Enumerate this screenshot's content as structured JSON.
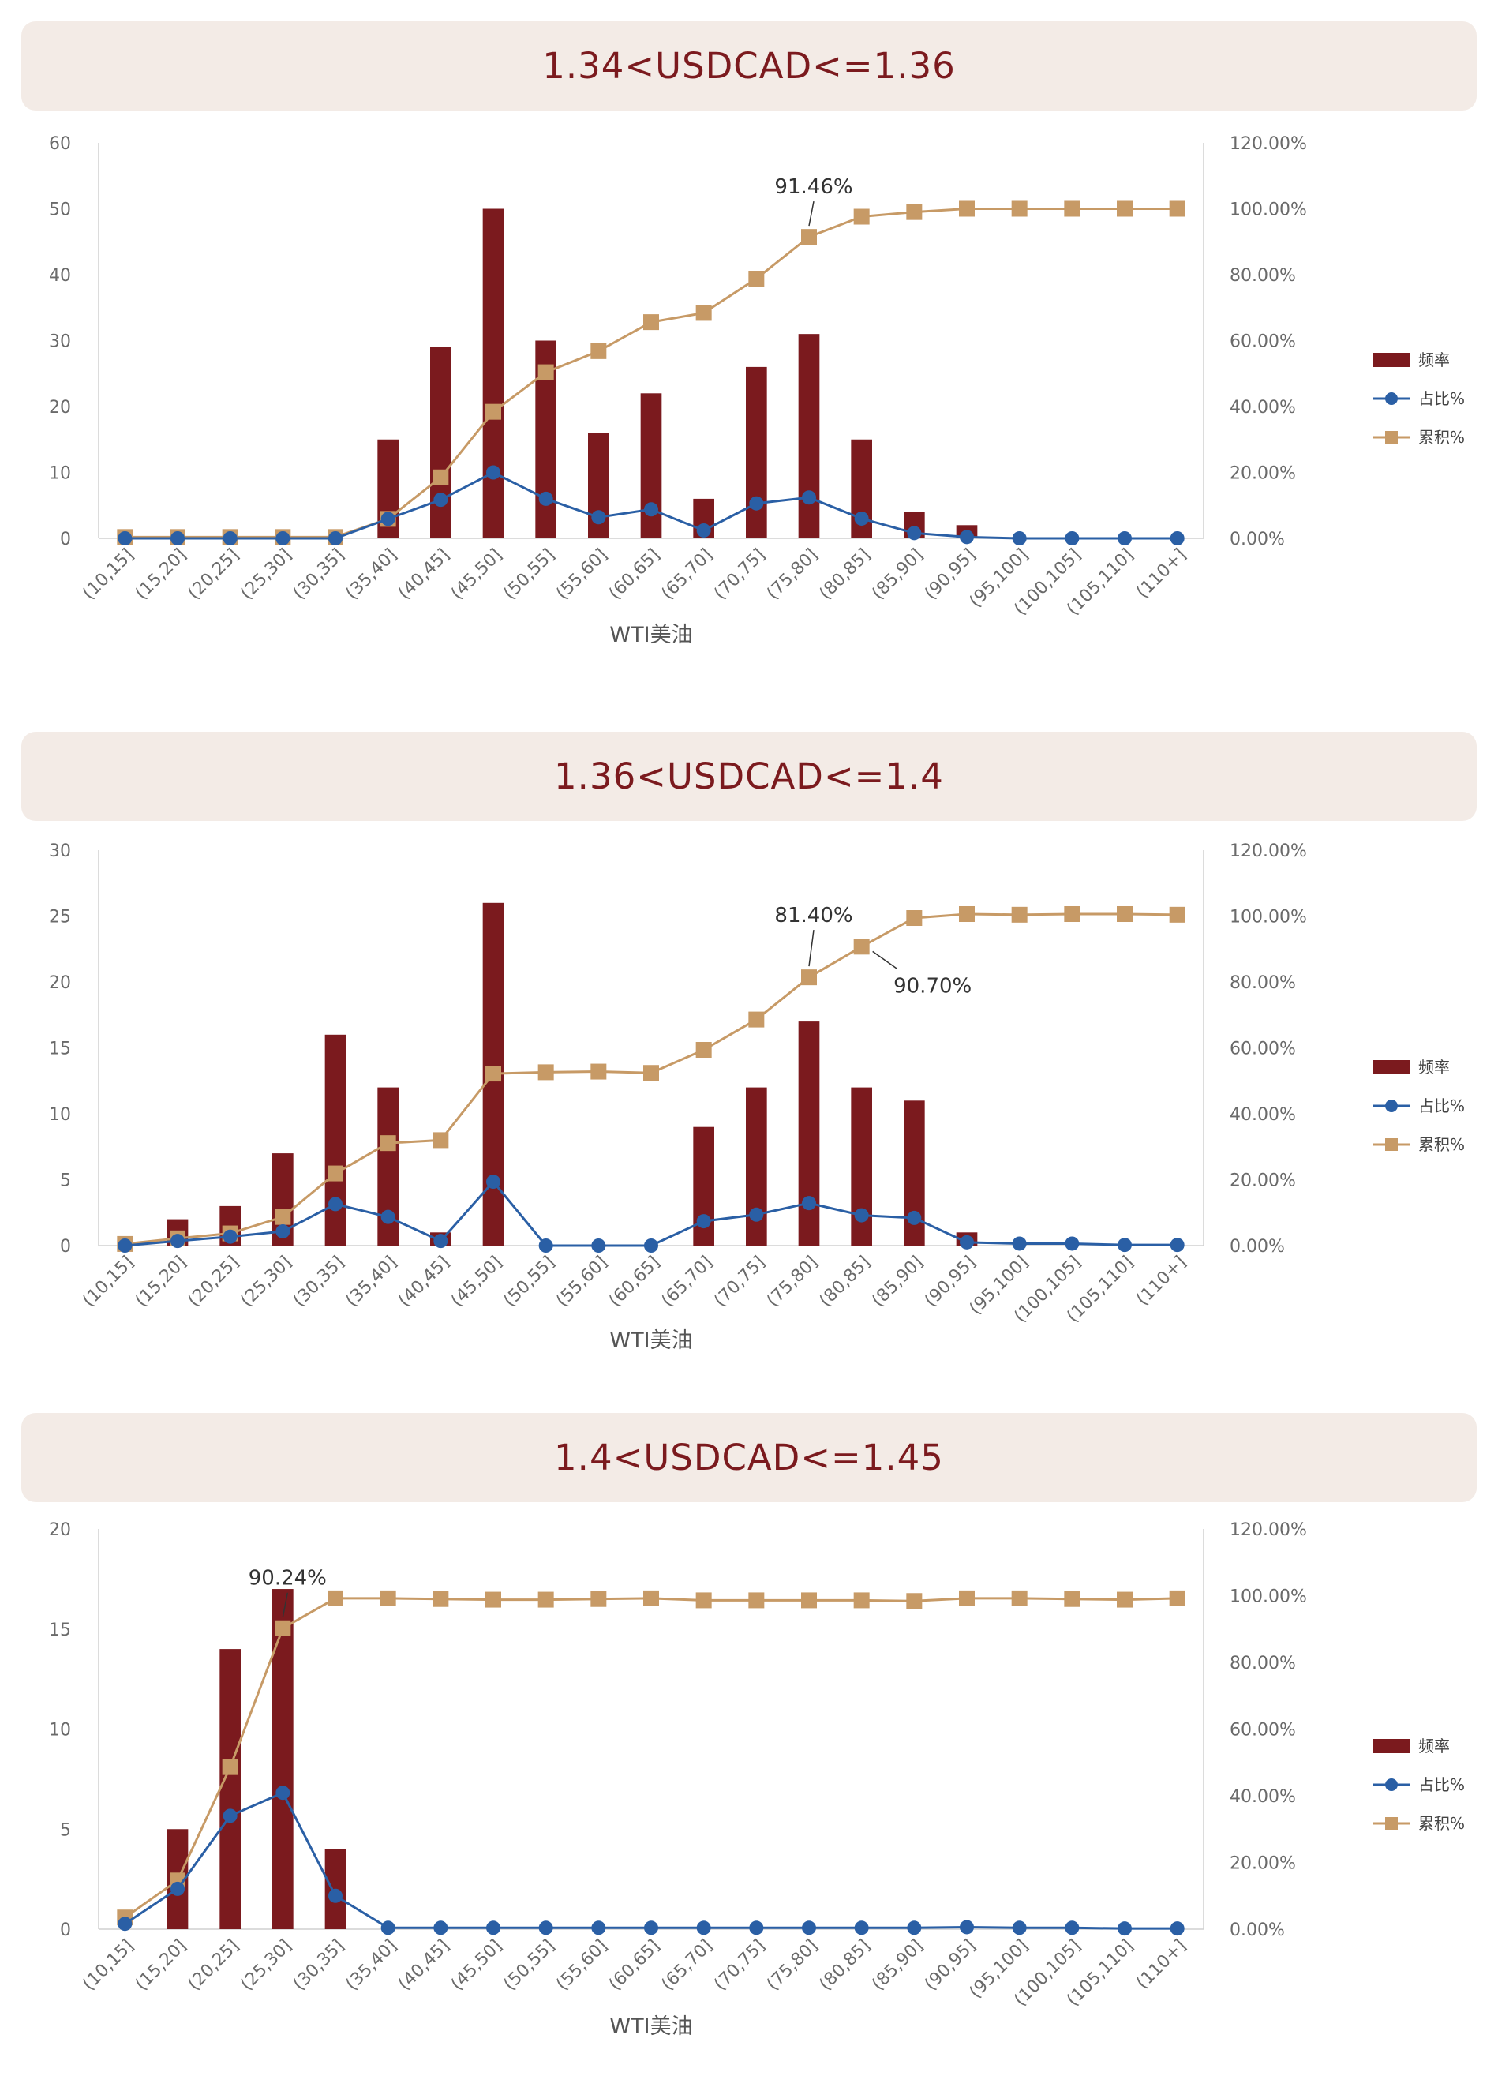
{
  "categories": [
    "(10,15]",
    "(15,20]",
    "(20,25]",
    "(25,30]",
    "(30,35]",
    "(35,40]",
    "(40,45]",
    "(45,50]",
    "(50,55]",
    "(55,60]",
    "(60,65]",
    "(65,70]",
    "(70,75]",
    "(75,80]",
    "(80,85]",
    "(85,90]",
    "(90,95]",
    "(95,100]",
    "(100,105]",
    "(105,110]",
    "(110+]"
  ],
  "colors": {
    "bar": "#7b1a1e",
    "ratio": "#2a5fa5",
    "cumulative": "#c79a66",
    "banner_bg": "#f3ebe6",
    "banner_text": "#7b1a1e"
  },
  "legend": {
    "bar": "频率",
    "ratio": "占比%",
    "cumulative": "累积%"
  },
  "chart_data": [
    {
      "type": "bar",
      "title": "1.34<USDCAD<=1.36",
      "xlabel": "WTI美油",
      "y_left_ticks": [
        "0",
        "10",
        "20",
        "30",
        "40",
        "50",
        "60"
      ],
      "y_right_ticks": [
        "0.00%",
        "20.00%",
        "40.00%",
        "60.00%",
        "80.00%",
        "100.00%",
        "120.00%"
      ],
      "ylim_left": [
        0,
        60
      ],
      "ylim_right": [
        0,
        120
      ],
      "series": [
        {
          "name": "频率",
          "type": "bar",
          "values": [
            0,
            0,
            0,
            0,
            0,
            15,
            29,
            50,
            30,
            16,
            22,
            6,
            26,
            31,
            15,
            4,
            2,
            0,
            0,
            0,
            0
          ]
        },
        {
          "name": "占比%",
          "type": "line",
          "values": [
            0,
            0,
            0,
            0,
            0,
            5.9,
            11.7,
            20,
            12,
            6.4,
            8.8,
            2.4,
            10.6,
            12.4,
            6,
            1.6,
            0.4,
            0,
            0,
            0,
            0
          ]
        },
        {
          "name": "累积%",
          "type": "line",
          "values": [
            0.4,
            0.4,
            0.4,
            0.4,
            0.4,
            5.9,
            18.5,
            38.4,
            50.4,
            56.8,
            65.6,
            68.4,
            78.8,
            91.46,
            97.6,
            99,
            100,
            100,
            100,
            100,
            100
          ]
        }
      ],
      "annotations": [
        {
          "text": "91.46%",
          "index": 13
        }
      ]
    },
    {
      "type": "bar",
      "title": "1.36<USDCAD<=1.4",
      "xlabel": "WTI美油",
      "y_left_ticks": [
        "0",
        "5",
        "10",
        "15",
        "20",
        "25",
        "30"
      ],
      "y_right_ticks": [
        "0.00%",
        "20.00%",
        "40.00%",
        "60.00%",
        "80.00%",
        "100.00%",
        "120.00%"
      ],
      "ylim_left": [
        0,
        30
      ],
      "ylim_right": [
        0,
        120
      ],
      "series": [
        {
          "name": "频率",
          "type": "bar",
          "values": [
            0,
            2,
            3,
            7,
            16,
            12,
            1,
            26,
            0,
            0,
            0,
            9,
            12,
            17,
            12,
            11,
            1,
            0,
            0,
            0,
            0
          ]
        },
        {
          "name": "占比%",
          "type": "line",
          "values": [
            0,
            1.4,
            2.7,
            4.3,
            12.6,
            8.7,
            1.4,
            19.4,
            0,
            0,
            0,
            7.4,
            9.4,
            12.9,
            9.2,
            8.4,
            1,
            0.6,
            0.6,
            0.2,
            0.2
          ]
        },
        {
          "name": "累积%",
          "type": "line",
          "values": [
            0.5,
            2.2,
            3.7,
            8.7,
            21.9,
            31.1,
            32,
            52.2,
            52.6,
            52.8,
            52.4,
            59.4,
            68.6,
            81.4,
            90.7,
            99.4,
            100.6,
            100.4,
            100.6,
            100.6,
            100.4
          ]
        }
      ],
      "annotations": [
        {
          "text": "81.40%",
          "index": 13
        },
        {
          "text": "90.70%",
          "index": 14
        }
      ]
    },
    {
      "type": "bar",
      "title": "1.4<USDCAD<=1.45",
      "xlabel": "WTI美油",
      "y_left_ticks": [
        "0",
        "5",
        "10",
        "15",
        "20"
      ],
      "y_right_ticks": [
        "0.00%",
        "20.00%",
        "40.00%",
        "60.00%",
        "80.00%",
        "100.00%",
        "120.00%"
      ],
      "ylim_left": [
        0,
        20
      ],
      "ylim_right": [
        0,
        120
      ],
      "series": [
        {
          "name": "频率",
          "type": "bar",
          "values": [
            0,
            5,
            14,
            17,
            4,
            0,
            0,
            0,
            0,
            0,
            0,
            0,
            0,
            0,
            0,
            0,
            0,
            0,
            0,
            0,
            0
          ]
        },
        {
          "name": "占比%",
          "type": "line",
          "values": [
            1.6,
            12.1,
            34,
            40.9,
            10,
            0.4,
            0.4,
            0.4,
            0.4,
            0.4,
            0.4,
            0.4,
            0.4,
            0.4,
            0.4,
            0.4,
            0.6,
            0.4,
            0.4,
            0.2,
            0.2
          ]
        },
        {
          "name": "累积%",
          "type": "line",
          "values": [
            3.5,
            14.6,
            48.6,
            90.24,
            99.2,
            99.2,
            99,
            98.8,
            98.8,
            99,
            99.2,
            98.6,
            98.6,
            98.6,
            98.6,
            98.4,
            99.2,
            99.2,
            99,
            98.8,
            99.2
          ]
        }
      ],
      "annotations": [
        {
          "text": "90.24%",
          "index": 3
        }
      ]
    }
  ]
}
